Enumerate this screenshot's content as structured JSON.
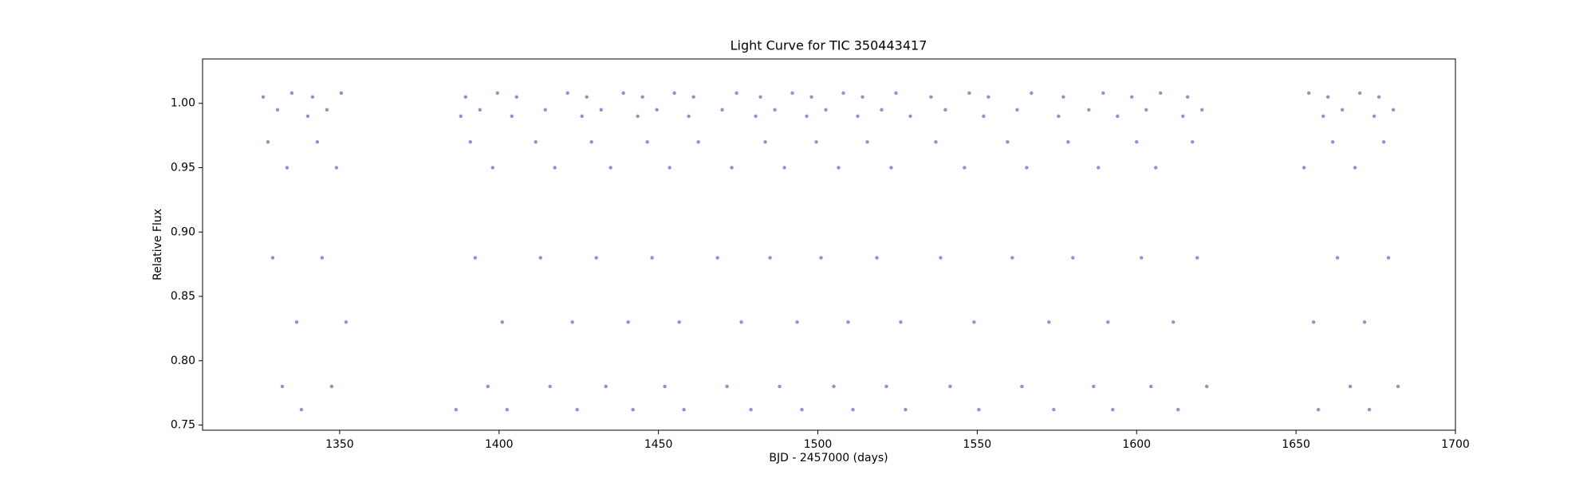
{
  "chart_data": {
    "type": "scatter",
    "title": "Light Curve for TIC 350443417",
    "x_label": "BJD - 2457000 (days)",
    "y_label": "Relative Flux",
    "xlim": [
      1307,
      1700
    ],
    "ylim": [
      0.746,
      1.0345
    ],
    "xticks": [
      1350,
      1400,
      1450,
      1500,
      1550,
      1600,
      1650,
      1700
    ],
    "yticks": [
      {
        "value": 0.75,
        "label": "0.75"
      },
      {
        "value": 0.8,
        "label": "0.80"
      },
      0.85,
      {
        "value": 0.9,
        "label": "0.90"
      },
      0.95,
      {
        "value": 1.0,
        "label": "1.00"
      }
    ],
    "grid": false,
    "series": [
      {
        "color": "#9467bd",
        "x": [
          1326,
          1327.5,
          1329,
          1330.5,
          1332,
          1333.5,
          1335,
          1336.5,
          1338,
          1340,
          1341.5,
          1343,
          1344.5,
          1346,
          1347.5,
          1349,
          1350.5,
          1352,
          1386.5,
          1388,
          1389.5,
          1391,
          1392.5,
          1394,
          1396.5,
          1398,
          1399.5,
          1401,
          1402.5,
          1404,
          1405.5,
          1411.5,
          1413,
          1414.5,
          1416,
          1417.5,
          1421.5,
          1423,
          1424.5,
          1426,
          1427.5,
          1429,
          1430.5,
          1432,
          1433.5,
          1435,
          1439,
          1440.5,
          1442,
          1443.5,
          1445,
          1446.5,
          1448,
          1449.5,
          1452,
          1453.5,
          1455,
          1456.5,
          1458,
          1459.5,
          1461,
          1462.5,
          1468.5,
          1470,
          1471.5,
          1473,
          1474.5,
          1476,
          1479,
          1480.5,
          1482,
          1483.5,
          1485,
          1486.5,
          1488,
          1489.5,
          1492,
          1493.5,
          1495,
          1496.5,
          1498,
          1499.5,
          1501,
          1502.5,
          1505,
          1506.5,
          1508,
          1509.5,
          1511,
          1512.5,
          1514,
          1515.5,
          1518.5,
          1520,
          1521.5,
          1523,
          1524.5,
          1526,
          1527.5,
          1529,
          1535.5,
          1537,
          1538.5,
          1540,
          1541.5,
          1546,
          1547.5,
          1549,
          1550.5,
          1552,
          1553.5,
          1559.5,
          1561,
          1562.5,
          1564,
          1565.5,
          1567,
          1572.5,
          1574,
          1575.5,
          1577,
          1578.5,
          1580,
          1585,
          1586.5,
          1588,
          1589.5,
          1591,
          1592.5,
          1594,
          1598.5,
          1600,
          1601.5,
          1603,
          1604.5,
          1606,
          1607.5,
          1611.5,
          1613,
          1614.5,
          1616,
          1617.5,
          1619,
          1620.5,
          1622,
          1652.5,
          1654,
          1655.5,
          1657,
          1658.5,
          1660,
          1661.5,
          1663,
          1664.5,
          1667,
          1668.5,
          1670,
          1671.5,
          1673,
          1674.5,
          1676,
          1677.5,
          1679,
          1680.5,
          1682
        ],
        "values": [
          1.005,
          0.97,
          0.88,
          0.995,
          0.78,
          0.95,
          1.008,
          0.83,
          0.762,
          0.99,
          1.005,
          0.97,
          0.88,
          0.995,
          0.78,
          0.95,
          1.008,
          0.83,
          0.762,
          0.99,
          1.005,
          0.97,
          0.88,
          0.995,
          0.78,
          0.95,
          1.008,
          0.83,
          0.762,
          0.99,
          1.005,
          0.97,
          0.88,
          0.995,
          0.78,
          0.95,
          1.008,
          0.83,
          0.762,
          0.99,
          1.005,
          0.97,
          0.88,
          0.995,
          0.78,
          0.95,
          1.008,
          0.83,
          0.762,
          0.99,
          1.005,
          0.97,
          0.88,
          0.995,
          0.78,
          0.95,
          1.008,
          0.83,
          0.762,
          0.99,
          1.005,
          0.97,
          0.88,
          0.995,
          0.78,
          0.95,
          1.008,
          0.83,
          0.762,
          0.99,
          1.005,
          0.97,
          0.88,
          0.995,
          0.78,
          0.95,
          1.008,
          0.83,
          0.762,
          0.99,
          1.005,
          0.97,
          0.88,
          0.995,
          0.78,
          0.95,
          1.008,
          0.83,
          0.762,
          0.99,
          1.005,
          0.97,
          0.88,
          0.995,
          0.78,
          0.95,
          1.008,
          0.83,
          0.762,
          0.99,
          1.005,
          0.97,
          0.88,
          0.995,
          0.78,
          0.95,
          1.008,
          0.83,
          0.762,
          0.99,
          1.005,
          0.97,
          0.88,
          0.995,
          0.78,
          0.95,
          1.008,
          0.83,
          0.762,
          0.99,
          1.005,
          0.97,
          0.88,
          0.995,
          0.78,
          0.95,
          1.008,
          0.83,
          0.762,
          0.99,
          1.005,
          0.97,
          0.88,
          0.995,
          0.78,
          0.95,
          1.008,
          0.83,
          0.762,
          0.99,
          1.005,
          0.97,
          0.88,
          0.995,
          0.78,
          0.95,
          1.008,
          0.83,
          0.762,
          0.99,
          1.005,
          0.97,
          0.88,
          0.995,
          0.78,
          0.95,
          1.008,
          0.83,
          0.762,
          0.99,
          1.005,
          0.97,
          0.88,
          0.995,
          0.78
        ]
      }
    ]
  }
}
